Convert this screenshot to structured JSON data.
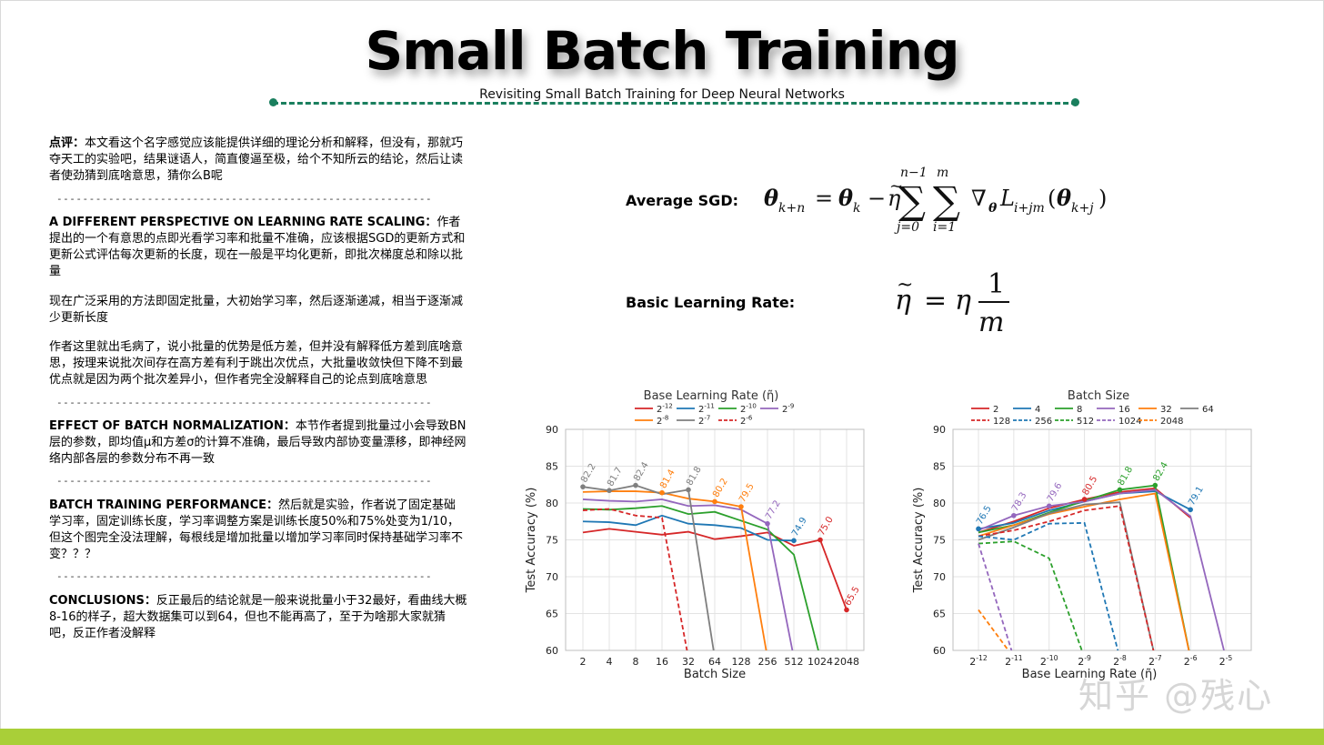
{
  "header": {
    "title": "Small Batch Training",
    "subtitle": "Revisiting Small Batch Training for Deep Neural Networks"
  },
  "left_column": {
    "dash_line": "----------------------------------------------------------",
    "review": {
      "label": "点评：",
      "text": "本文看这个名字感觉应该能提供详细的理论分析和解释，但没有，那就巧夺天工的实验吧，结果谜语人，简直傻逼至极，给个不知所云的结论，然后让读者使劲猜到底啥意思，猜你么B呢"
    },
    "section1": {
      "label": "A DIFFERENT PERSPECTIVE ON LEARNING RATE SCALING",
      "colon": "：",
      "text": "作者提出的一个有意思的点即光看学习率和批量不准确，应该根据SGD的更新方式和更新公式评估每次更新的长度，现在一般是平均化更新，即批次梯度总和除以批量",
      "para2": "现在广泛采用的方法即固定批量，大初始学习率，然后逐渐递减，相当于逐渐减少更新长度",
      "para3": "作者这里就出毛病了，说小批量的优势是低方差，但并没有解释低方差到底啥意思，按理来说批次间存在高方差有利于跳出次优点，大批量收敛快但下降不到最优点就是因为两个批次差异小，但作者完全没解释自己的论点到底啥意思"
    },
    "section2": {
      "label": "EFFECT OF BATCH NORMALIZATION",
      "colon": "：",
      "text": "本节作者提到批量过小会导致BN层的参数，即均值μ和方差σ的计算不准确，最后导致内部协变量漂移，即神经网络内部各层的参数分布不再一致"
    },
    "section3": {
      "label": "BATCH TRAINING PERFORMANCE",
      "colon": "：",
      "text": "然后就是实验，作者说了固定基础学习率，固定训练长度，学习率调整方案是训练长度50%和75%处变为1/10，但这个图完全没法理解，每根线是增加批量以增加学习率同时保持基础学习率不变？？？"
    },
    "section4": {
      "label": "CONCLUSIONS",
      "colon": "：",
      "text": "反正最后的结论就是一般来说批量小于32最好，看曲线大概8-16的样子，超大数据集可以到64，但也不能再高了，至于为啥那大家就猜吧，反正作者没解释"
    }
  },
  "formulas": {
    "average_sgd_label": "Average SGD:",
    "basic_lr_label": "Basic Learning Rate:"
  },
  "watermark": "知乎 @残心",
  "colors": {
    "accent_green": "#1a7f5e",
    "bottom_bar": "#a9cf38"
  },
  "chart_data": [
    {
      "type": "line",
      "legend_title": "Base Learning Rate (η̃)",
      "xlabel": "Batch Size",
      "ylabel": "Test Accuracy (%)",
      "ylim": [
        60,
        90
      ],
      "yticks": [
        60,
        65,
        70,
        75,
        80,
        85,
        90
      ],
      "categories": [
        "2",
        "4",
        "8",
        "16",
        "32",
        "64",
        "128",
        "256",
        "512",
        "1024",
        "2048"
      ],
      "legend": [
        {
          "label": "2^-12",
          "base": "2",
          "exp": "-12",
          "color": "#d62728",
          "dash": false
        },
        {
          "label": "2^-11",
          "base": "2",
          "exp": "-11",
          "color": "#1f77b4",
          "dash": false
        },
        {
          "label": "2^-10",
          "base": "2",
          "exp": "-10",
          "color": "#2ca02c",
          "dash": false
        },
        {
          "label": "2^-9",
          "base": "2",
          "exp": "-9",
          "color": "#9467bd",
          "dash": false
        },
        {
          "label": "2^-8",
          "base": "2",
          "exp": "-8",
          "color": "#ff7f0e",
          "dash": false
        },
        {
          "label": "2^-7",
          "base": "2",
          "exp": "-7",
          "color": "#7f7f7f",
          "dash": false
        },
        {
          "label": "2^-6",
          "base": "2",
          "exp": "-6",
          "color": "#d62728",
          "dash": true
        }
      ],
      "series": [
        {
          "color": "#d62728",
          "dash": false,
          "values": [
            76.0,
            76.5,
            76.1,
            75.7,
            76.1,
            75.1,
            75.5,
            76.0,
            74.2,
            75.0,
            65.5
          ]
        },
        {
          "color": "#1f77b4",
          "dash": false,
          "values": [
            77.5,
            77.4,
            77.0,
            78.3,
            77.2,
            77.0,
            76.6,
            75.0,
            74.9,
            null,
            null
          ]
        },
        {
          "color": "#2ca02c",
          "dash": false,
          "values": [
            79.2,
            79.1,
            79.3,
            79.6,
            78.5,
            78.8,
            77.6,
            76.4,
            73.0,
            59,
            null
          ]
        },
        {
          "color": "#9467bd",
          "dash": false,
          "values": [
            80.5,
            80.3,
            80.2,
            80.5,
            79.6,
            79.7,
            79.1,
            77.2,
            59,
            null,
            null
          ]
        },
        {
          "color": "#ff7f0e",
          "dash": false,
          "values": [
            81.5,
            81.6,
            81.6,
            81.4,
            80.6,
            80.2,
            79.5,
            59,
            null,
            null,
            null
          ]
        },
        {
          "color": "#7f7f7f",
          "dash": false,
          "values": [
            82.2,
            81.7,
            82.4,
            81.2,
            81.8,
            59,
            null,
            null,
            null,
            null,
            null
          ]
        },
        {
          "color": "#d62728",
          "dash": true,
          "values": [
            79.0,
            79.2,
            78.3,
            78.0,
            59,
            null,
            null,
            null,
            null,
            null,
            null
          ]
        }
      ],
      "labels": [
        {
          "text": "82.2",
          "x": 0,
          "y": 82.2,
          "color": "#7f7f7f"
        },
        {
          "text": "81.7",
          "x": 1,
          "y": 81.7,
          "color": "#7f7f7f"
        },
        {
          "text": "82.4",
          "x": 2,
          "y": 82.4,
          "color": "#7f7f7f"
        },
        {
          "text": "81.4",
          "x": 3,
          "y": 81.4,
          "color": "#ff7f0e"
        },
        {
          "text": "81.8",
          "x": 4,
          "y": 81.8,
          "color": "#7f7f7f"
        },
        {
          "text": "80.2",
          "x": 5,
          "y": 80.2,
          "color": "#ff7f0e"
        },
        {
          "text": "79.5",
          "x": 6,
          "y": 79.5,
          "color": "#ff7f0e"
        },
        {
          "text": "77.2",
          "x": 7,
          "y": 77.2,
          "color": "#9467bd"
        },
        {
          "text": "74.9",
          "x": 8,
          "y": 74.9,
          "color": "#1f77b4"
        },
        {
          "text": "75.0",
          "x": 9,
          "y": 75.0,
          "color": "#d62728"
        },
        {
          "text": "65.5",
          "x": 10,
          "y": 65.5,
          "color": "#d62728"
        }
      ]
    },
    {
      "type": "line",
      "legend_title": "Batch Size",
      "xlabel": "Base Learning Rate (η̃)",
      "ylabel": "Test Accuracy (%)",
      "ylim": [
        60,
        90
      ],
      "yticks": [
        60,
        65,
        70,
        75,
        80,
        85,
        90
      ],
      "categories": [
        "2^-12",
        "2^-11",
        "2^-10",
        "2^-9",
        "2^-8",
        "2^-7",
        "2^-6",
        "2^-5"
      ],
      "tick_exps": [
        "-12",
        "-11",
        "-10",
        "-9",
        "-8",
        "-7",
        "-6",
        "-5"
      ],
      "legend": [
        {
          "label": "2",
          "color": "#d62728",
          "dash": false
        },
        {
          "label": "4",
          "color": "#1f77b4",
          "dash": false
        },
        {
          "label": "8",
          "color": "#2ca02c",
          "dash": false
        },
        {
          "label": "16",
          "color": "#9467bd",
          "dash": false
        },
        {
          "label": "32",
          "color": "#ff7f0e",
          "dash": false
        },
        {
          "label": "64",
          "color": "#7f7f7f",
          "dash": false
        },
        {
          "label": "128",
          "color": "#d62728",
          "dash": true
        },
        {
          "label": "256",
          "color": "#1f77b4",
          "dash": true
        },
        {
          "label": "512",
          "color": "#2ca02c",
          "dash": true
        },
        {
          "label": "1024",
          "color": "#9467bd",
          "dash": true
        },
        {
          "label": "2048",
          "color": "#ff7f0e",
          "dash": true
        }
      ],
      "series": [
        {
          "color": "#d62728",
          "dash": false,
          "values": [
            76.0,
            77.5,
            79.3,
            80.5,
            81.5,
            82.0,
            78.0,
            null
          ]
        },
        {
          "color": "#1f77b4",
          "dash": false,
          "values": [
            76.5,
            77.3,
            79.0,
            80.2,
            81.3,
            81.6,
            79.1,
            null
          ]
        },
        {
          "color": "#2ca02c",
          "dash": false,
          "values": [
            76.0,
            77.0,
            78.7,
            80.3,
            81.8,
            82.4,
            59,
            null
          ]
        },
        {
          "color": "#9467bd",
          "dash": false,
          "values": [
            76.3,
            78.3,
            79.6,
            80.2,
            81.3,
            81.8,
            78.2,
            59
          ]
        },
        {
          "color": "#ff7f0e",
          "dash": false,
          "values": [
            75.5,
            77.0,
            78.5,
            79.5,
            80.5,
            81.3,
            59,
            null
          ]
        },
        {
          "color": "#7f7f7f",
          "dash": false,
          "values": [
            75.0,
            76.7,
            78.6,
            79.8,
            80.1,
            59,
            null,
            null
          ]
        },
        {
          "color": "#d62728",
          "dash": true,
          "values": [
            75.5,
            76.3,
            77.5,
            79.0,
            79.6,
            59,
            null,
            null
          ]
        },
        {
          "color": "#1f77b4",
          "dash": true,
          "values": [
            75.5,
            75.0,
            77.2,
            77.3,
            59,
            null,
            null,
            null
          ]
        },
        {
          "color": "#2ca02c",
          "dash": true,
          "values": [
            74.5,
            74.8,
            72.5,
            59,
            null,
            null,
            null,
            null
          ]
        },
        {
          "color": "#9467bd",
          "dash": true,
          "values": [
            74.5,
            59,
            null,
            null,
            null,
            null,
            null,
            null
          ]
        },
        {
          "color": "#ff7f0e",
          "dash": true,
          "values": [
            65.5,
            59,
            null,
            null,
            null,
            null,
            null,
            null
          ]
        }
      ],
      "labels": [
        {
          "text": "76.5",
          "x": 0,
          "y": 76.5,
          "color": "#1f77b4"
        },
        {
          "text": "78.3",
          "x": 1,
          "y": 78.3,
          "color": "#9467bd"
        },
        {
          "text": "79.6",
          "x": 2,
          "y": 79.6,
          "color": "#9467bd"
        },
        {
          "text": "80.5",
          "x": 3,
          "y": 80.5,
          "color": "#d62728"
        },
        {
          "text": "81.8",
          "x": 4,
          "y": 81.8,
          "color": "#2ca02c"
        },
        {
          "text": "82.4",
          "x": 5,
          "y": 82.4,
          "color": "#2ca02c"
        },
        {
          "text": "79.1",
          "x": 6,
          "y": 79.1,
          "color": "#1f77b4"
        }
      ]
    }
  ]
}
